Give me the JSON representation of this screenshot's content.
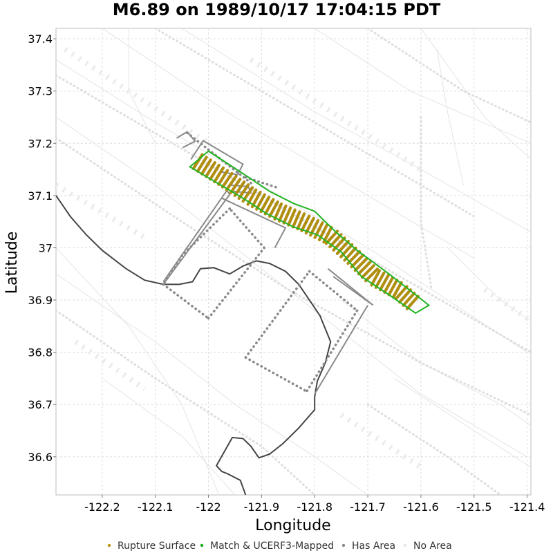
{
  "chart_data": {
    "type": "map",
    "title": "M6.89 on 1989/10/17 17:04:15 PDT",
    "xlabel": "Longitude",
    "ylabel": "Latitude",
    "xlim": [
      -122.287,
      -121.393
    ],
    "ylim": [
      36.527,
      37.42
    ],
    "x_ticks": [
      {
        "value": -122.2,
        "label": "-122.2"
      },
      {
        "value": -122.1,
        "label": "-122.1"
      },
      {
        "value": -122.0,
        "label": "-122"
      },
      {
        "value": -121.9,
        "label": "-121.9"
      },
      {
        "value": -121.8,
        "label": "-121.8"
      },
      {
        "value": -121.7,
        "label": "-121.7"
      },
      {
        "value": -121.6,
        "label": "-121.6"
      },
      {
        "value": -121.5,
        "label": "-121.5"
      },
      {
        "value": -121.4,
        "label": "-121.4"
      }
    ],
    "y_ticks": [
      {
        "value": 37.4,
        "label": "37.4"
      },
      {
        "value": 37.3,
        "label": "37.3"
      },
      {
        "value": 37.2,
        "label": "37.2"
      },
      {
        "value": 37.1,
        "label": "37.1"
      },
      {
        "value": 37.0,
        "label": "37"
      },
      {
        "value": 36.9,
        "label": "36.9"
      },
      {
        "value": 36.8,
        "label": "36.8"
      },
      {
        "value": 36.7,
        "label": "36.7"
      },
      {
        "value": 36.6,
        "label": "36.6"
      }
    ],
    "grid": true,
    "legend_position": "bottom",
    "legend": [
      {
        "label": "Rupture Surface",
        "color": "#b8960c"
      },
      {
        "label": "Match & UCERF3-Mapped",
        "color": "#1aaa1a"
      },
      {
        "label": "Has Area",
        "color": "#888888"
      },
      {
        "label": "No Area",
        "color": "#e6e6e6"
      }
    ],
    "colors": {
      "rupture": "#b08e10",
      "match_outline": "#22b422",
      "has_area": "#8a8a8a",
      "no_area": "#e4e4e4",
      "coastline": "#444444"
    },
    "rupture_trace": [
      [
        -122.02,
        37.165
      ],
      [
        -121.97,
        37.133
      ],
      [
        -121.92,
        37.098
      ],
      [
        -121.87,
        37.07
      ],
      [
        -121.82,
        37.048
      ],
      [
        -121.77,
        37.022
      ],
      [
        -121.73,
        36.985
      ],
      [
        -121.69,
        36.945
      ],
      [
        -121.64,
        36.917
      ],
      [
        -121.61,
        36.89
      ]
    ],
    "match_outline": [
      [
        -122.0,
        37.185
      ],
      [
        -121.962,
        37.16
      ],
      [
        -121.92,
        37.132
      ],
      [
        -121.885,
        37.108
      ],
      [
        -121.84,
        37.085
      ],
      [
        -121.8,
        37.07
      ],
      [
        -121.76,
        37.03
      ],
      [
        -121.72,
        36.995
      ],
      [
        -121.66,
        36.95
      ],
      [
        -121.585,
        36.89
      ],
      [
        -121.61,
        36.875
      ],
      [
        -121.66,
        36.91
      ],
      [
        -121.712,
        36.945
      ],
      [
        -121.75,
        36.992
      ],
      [
        -121.795,
        37.025
      ],
      [
        -121.84,
        37.04
      ],
      [
        -121.89,
        37.065
      ],
      [
        -121.935,
        37.095
      ],
      [
        -121.985,
        37.125
      ],
      [
        -122.035,
        37.155
      ]
    ],
    "has_area_outlines": [
      [
        [
          -122.06,
          37.21
        ],
        [
          -122.04,
          37.222
        ],
        [
          -122.025,
          37.204
        ],
        [
          -122.048,
          37.192
        ]
      ],
      [
        [
          -122.033,
          37.169
        ],
        [
          -122.01,
          37.205
        ],
        [
          -121.935,
          37.16
        ],
        [
          -121.945,
          37.14
        ],
        [
          -121.975,
          37.145
        ]
      ],
      [
        [
          -121.96,
          37.12
        ],
        [
          -121.925,
          37.117
        ],
        [
          -121.92,
          37.105
        ],
        [
          -121.955,
          37.108
        ]
      ],
      [
        [
          -122.085,
          36.93
        ],
        [
          -121.96,
          37.102
        ],
        [
          -121.965,
          37.11
        ],
        [
          -122.085,
          36.935
        ]
      ],
      [
        [
          -121.975,
          37.095
        ],
        [
          -121.855,
          37.038
        ],
        [
          -121.875,
          37.0
        ]
      ],
      [
        [
          -121.765,
          36.945
        ],
        [
          -121.69,
          36.89
        ],
        [
          -121.775,
          36.96
        ]
      ],
      [
        [
          -121.7,
          36.89
        ],
        [
          -121.8,
          36.72
        ],
        [
          -121.8,
          36.72
        ]
      ]
    ],
    "has_area_dotted": [
      [
        [
          -122.085,
          36.93
        ],
        [
          -122.0,
          36.865
        ]
      ],
      [
        [
          -122.0,
          36.865
        ],
        [
          -121.895,
          37.0
        ]
      ],
      [
        [
          -121.895,
          37.0
        ],
        [
          -121.96,
          37.075
        ]
      ],
      [
        [
          -121.96,
          37.075
        ],
        [
          -122.05,
          36.985
        ]
      ],
      [
        [
          -122.05,
          36.985
        ],
        [
          -122.085,
          36.93
        ]
      ],
      [
        [
          -121.93,
          36.79
        ],
        [
          -121.815,
          36.725
        ]
      ],
      [
        [
          -121.93,
          36.79
        ],
        [
          -121.81,
          36.955
        ]
      ],
      [
        [
          -121.81,
          36.955
        ],
        [
          -121.72,
          36.88
        ]
      ],
      [
        [
          -121.72,
          36.88
        ],
        [
          -121.815,
          36.725
        ]
      ],
      [
        [
          -122.04,
          37.22
        ],
        [
          -121.915,
          37.12
        ]
      ],
      [
        [
          -121.93,
          37.135
        ],
        [
          -121.87,
          37.115
        ]
      ]
    ],
    "coastline": [
      [
        -122.287,
        37.1
      ],
      [
        -122.26,
        37.06
      ],
      [
        -122.23,
        37.025
      ],
      [
        -122.2,
        36.995
      ],
      [
        -122.155,
        36.96
      ],
      [
        -122.12,
        36.938
      ],
      [
        -122.085,
        36.93
      ],
      [
        -122.055,
        36.93
      ],
      [
        -122.03,
        36.935
      ],
      [
        -122.015,
        36.96
      ],
      [
        -121.99,
        36.962
      ],
      [
        -121.96,
        36.95
      ],
      [
        -121.935,
        36.965
      ],
      [
        -121.91,
        36.975
      ],
      [
        -121.885,
        36.97
      ],
      [
        -121.855,
        36.955
      ],
      [
        -121.83,
        36.93
      ],
      [
        -121.81,
        36.9
      ],
      [
        -121.79,
        36.87
      ],
      [
        -121.77,
        36.82
      ],
      [
        -121.78,
        36.78
      ],
      [
        -121.795,
        36.745
      ],
      [
        -121.8,
        36.715
      ],
      [
        -121.8,
        36.69
      ],
      [
        -121.83,
        36.655
      ],
      [
        -121.86,
        36.625
      ],
      [
        -121.885,
        36.605
      ],
      [
        -121.905,
        36.598
      ],
      [
        -121.92,
        36.62
      ],
      [
        -121.935,
        36.635
      ],
      [
        -121.955,
        36.637
      ],
      [
        -121.97,
        36.61
      ],
      [
        -121.985,
        36.583
      ],
      [
        -121.975,
        36.572
      ],
      [
        -121.965,
        36.568
      ],
      [
        -121.94,
        36.555
      ],
      [
        -121.93,
        36.527
      ]
    ]
  }
}
